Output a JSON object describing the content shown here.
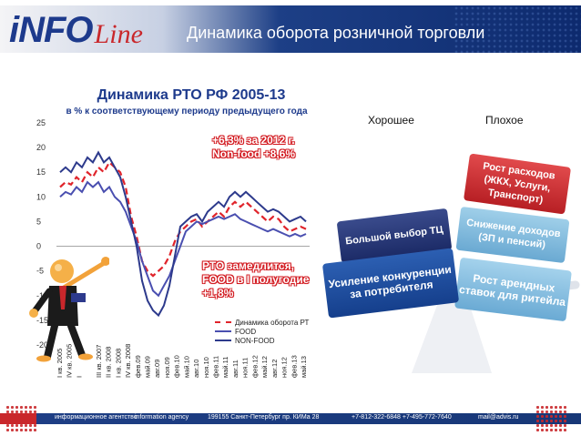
{
  "header": {
    "logo_main": "iNFO",
    "logo_line": "Line",
    "title": "Динамика оборота розничной торговли"
  },
  "chart": {
    "title": "Динамика РТО РФ 2005-13",
    "subtitle": "в % к соответствующему периоду предыдущего года",
    "note1_line1": "+6,3% за 2012 г.",
    "note1_line2": "Non-food +8,6%",
    "note2_line1": "РТО замедлится,",
    "note2_line2": "FOOD в I полугодие",
    "note2_line3": "+1,8%"
  },
  "chart_data": {
    "type": "line",
    "y_ticks": [
      "25",
      "20",
      "15",
      "10",
      "5",
      "0",
      "-5",
      "-10",
      "-15",
      "-20"
    ],
    "ylim": [
      -20,
      25
    ],
    "x_tick_labels": [
      "I кв. 2005",
      "IV кв. 2005",
      "I",
      "",
      "III кв. 2007",
      "II кв. 2008",
      "I кв. 2008",
      "IV кв. 2008",
      "фев.09",
      "май.09",
      "авг.09",
      "ноя.09",
      "фев.10",
      "май.10",
      "авг.10",
      "ноя.10",
      "фев.11",
      "май.11",
      "авг.11",
      "ноя.11",
      "фев.12",
      "май.12",
      "авг.12",
      "ноя.12",
      "фев.13",
      "май.13"
    ],
    "series": [
      {
        "name": "Динамика оборота РТ",
        "color": "#e0242b",
        "dash": true,
        "values": [
          12,
          13,
          12.5,
          14,
          13,
          15,
          14,
          16,
          15,
          17,
          16,
          15,
          12,
          6,
          2,
          -3,
          -5,
          -6,
          -5,
          -4,
          -2,
          1,
          3,
          4,
          5,
          5.5,
          4,
          5,
          6,
          7,
          6,
          8,
          9,
          8,
          9,
          8,
          7,
          6,
          5,
          6,
          5.5,
          4,
          3,
          3.5,
          4,
          3.5
        ]
      },
      {
        "name": "FOOD",
        "color": "#4a4fb0",
        "dash": false,
        "values": [
          10,
          11,
          10.5,
          12,
          11,
          13,
          12,
          13,
          11,
          12,
          10,
          9,
          7,
          4,
          1,
          -3,
          -6,
          -9,
          -10,
          -8,
          -6,
          -3,
          0,
          3,
          4,
          5,
          4.5,
          5,
          5.5,
          6,
          5.5,
          6,
          6.5,
          5.5,
          5,
          4.5,
          4,
          3.5,
          3,
          3.5,
          3,
          2.5,
          2,
          2.5,
          2,
          2.5
        ]
      },
      {
        "name": "NON-FOOD",
        "color": "#2d3a8c",
        "dash": false,
        "values": [
          15,
          16,
          15,
          17,
          16,
          18,
          17,
          19,
          17,
          18,
          16,
          14,
          10,
          5,
          0,
          -7,
          -11,
          -13,
          -14,
          -12,
          -8,
          -2,
          4,
          5,
          6,
          6.5,
          5,
          7,
          8,
          9,
          8,
          10,
          11,
          10,
          11,
          10,
          9,
          8,
          7,
          7.5,
          7,
          6,
          5,
          5.5,
          6,
          5
        ]
      }
    ]
  },
  "balance": {
    "good_label": "Хорошее",
    "bad_label": "Плохое",
    "bad_top": "Рост расходов (ЖКХ, Услуги, Транспорт)",
    "bad_mid": "Снижение доходов (ЗП и пенсий)",
    "bad_bottom": "Рост арендных ставок для ритейла",
    "good_top": "Большой выбор ТЦ",
    "good_bottom": "Усиление конкуренции за потребителя"
  },
  "footer": {
    "agency_ru": "информационное агентство",
    "agency_en": "information agency",
    "address": "199155 Санкт-Петербург пр. КИМа 28",
    "phones": "+7-812-322-6848 +7-495-772-7640",
    "email": "mail@advis.ru"
  }
}
